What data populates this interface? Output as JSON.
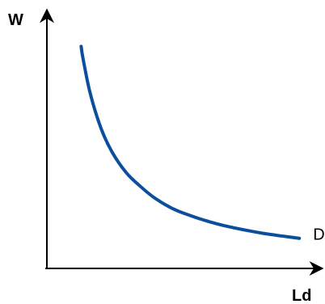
{
  "chart_data": {
    "type": "line",
    "ylabel": "W",
    "xlabel": "Ld",
    "series": [
      {
        "name": "D",
        "color": "#0b4f9c",
        "x": [
          0.95,
          1.0,
          1.2,
          1.5,
          1.8,
          2.2,
          2.6,
          3.0,
          3.5,
          4.0,
          4.5,
          5.0,
          5.5,
          6.0,
          6.5,
          7.0
        ],
        "y": [
          9.5,
          9.0,
          7.5,
          6.0,
          5.0,
          4.1,
          3.5,
          3.0,
          2.55,
          2.25,
          2.0,
          1.8,
          1.64,
          1.5,
          1.39,
          1.29
        ]
      }
    ],
    "xlim": [
      0,
      7.6
    ],
    "ylim": [
      0,
      11
    ],
    "grid": false,
    "axis_color": "#000000",
    "ticks": "none"
  }
}
